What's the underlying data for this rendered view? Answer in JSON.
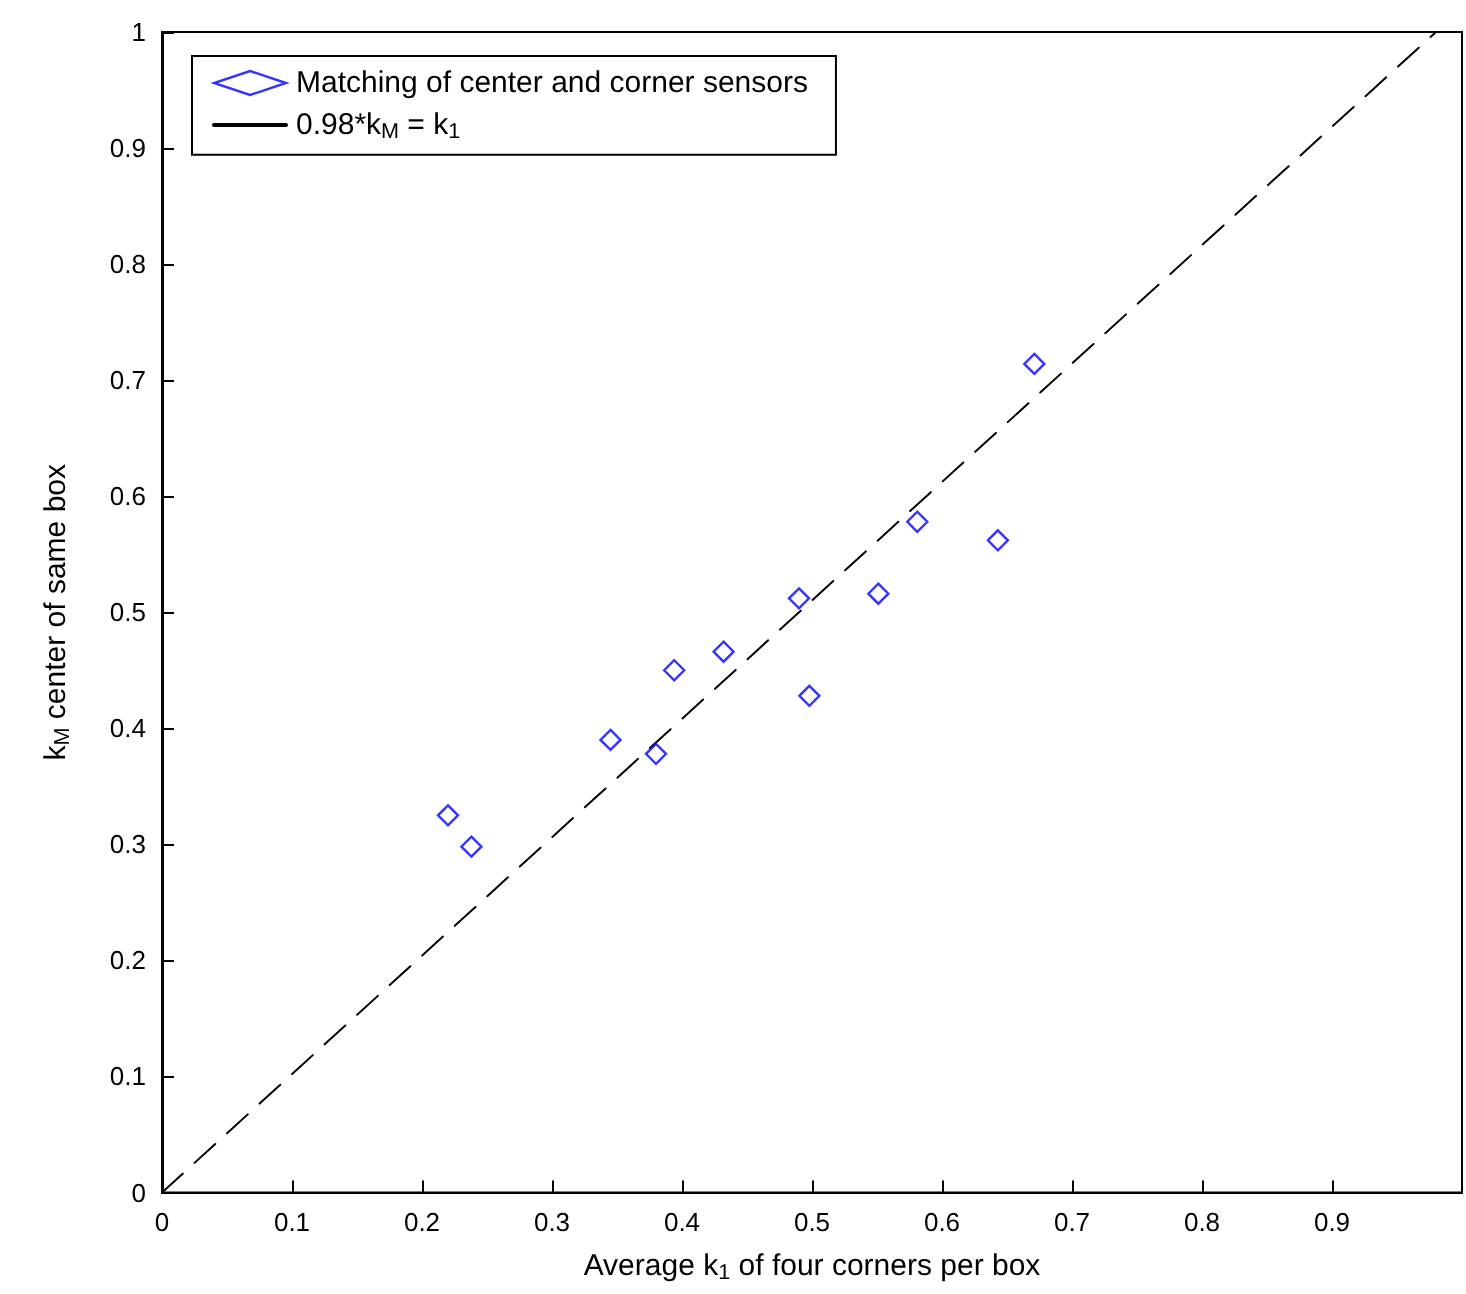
{
  "chart_data": {
    "type": "scatter",
    "xlabel": "Average k$_{1}$ of four corners per box",
    "ylabel": "k$_{M}$ center of same box",
    "xlim": [
      0,
      1
    ],
    "xticks": [
      0,
      0.1,
      0.2,
      0.3,
      0.4,
      0.5,
      0.6,
      0.7,
      0.8,
      0.9
    ],
    "ylim": [
      0,
      1
    ],
    "yticks": [
      0,
      0.1,
      0.2,
      0.3,
      0.4,
      0.5,
      0.6,
      0.7,
      0.8,
      0.9,
      1
    ],
    "grid": false,
    "legend": "top left",
    "series": [
      {
        "name": "Matching of center and corner sensors",
        "color": "#0000ff",
        "marker": "diamond",
        "x": [
          0.22,
          0.238,
          0.345,
          0.38,
          0.394,
          0.432,
          0.49,
          0.498,
          0.551,
          0.581,
          0.643,
          0.671
        ],
        "values": [
          0.325,
          0.298,
          0.39,
          0.378,
          0.45,
          0.466,
          0.512,
          0.428,
          0.516,
          0.578,
          0.562,
          0.714
        ]
      },
      {
        "name": "0.98*k$_{M}$ = k$_{1}$",
        "type": "line",
        "color": "#000000",
        "marker": "none",
        "line_style": "dashed",
        "x": [
          0,
          0.98
        ],
        "values": [
          0,
          1
        ]
      }
    ]
  }
}
